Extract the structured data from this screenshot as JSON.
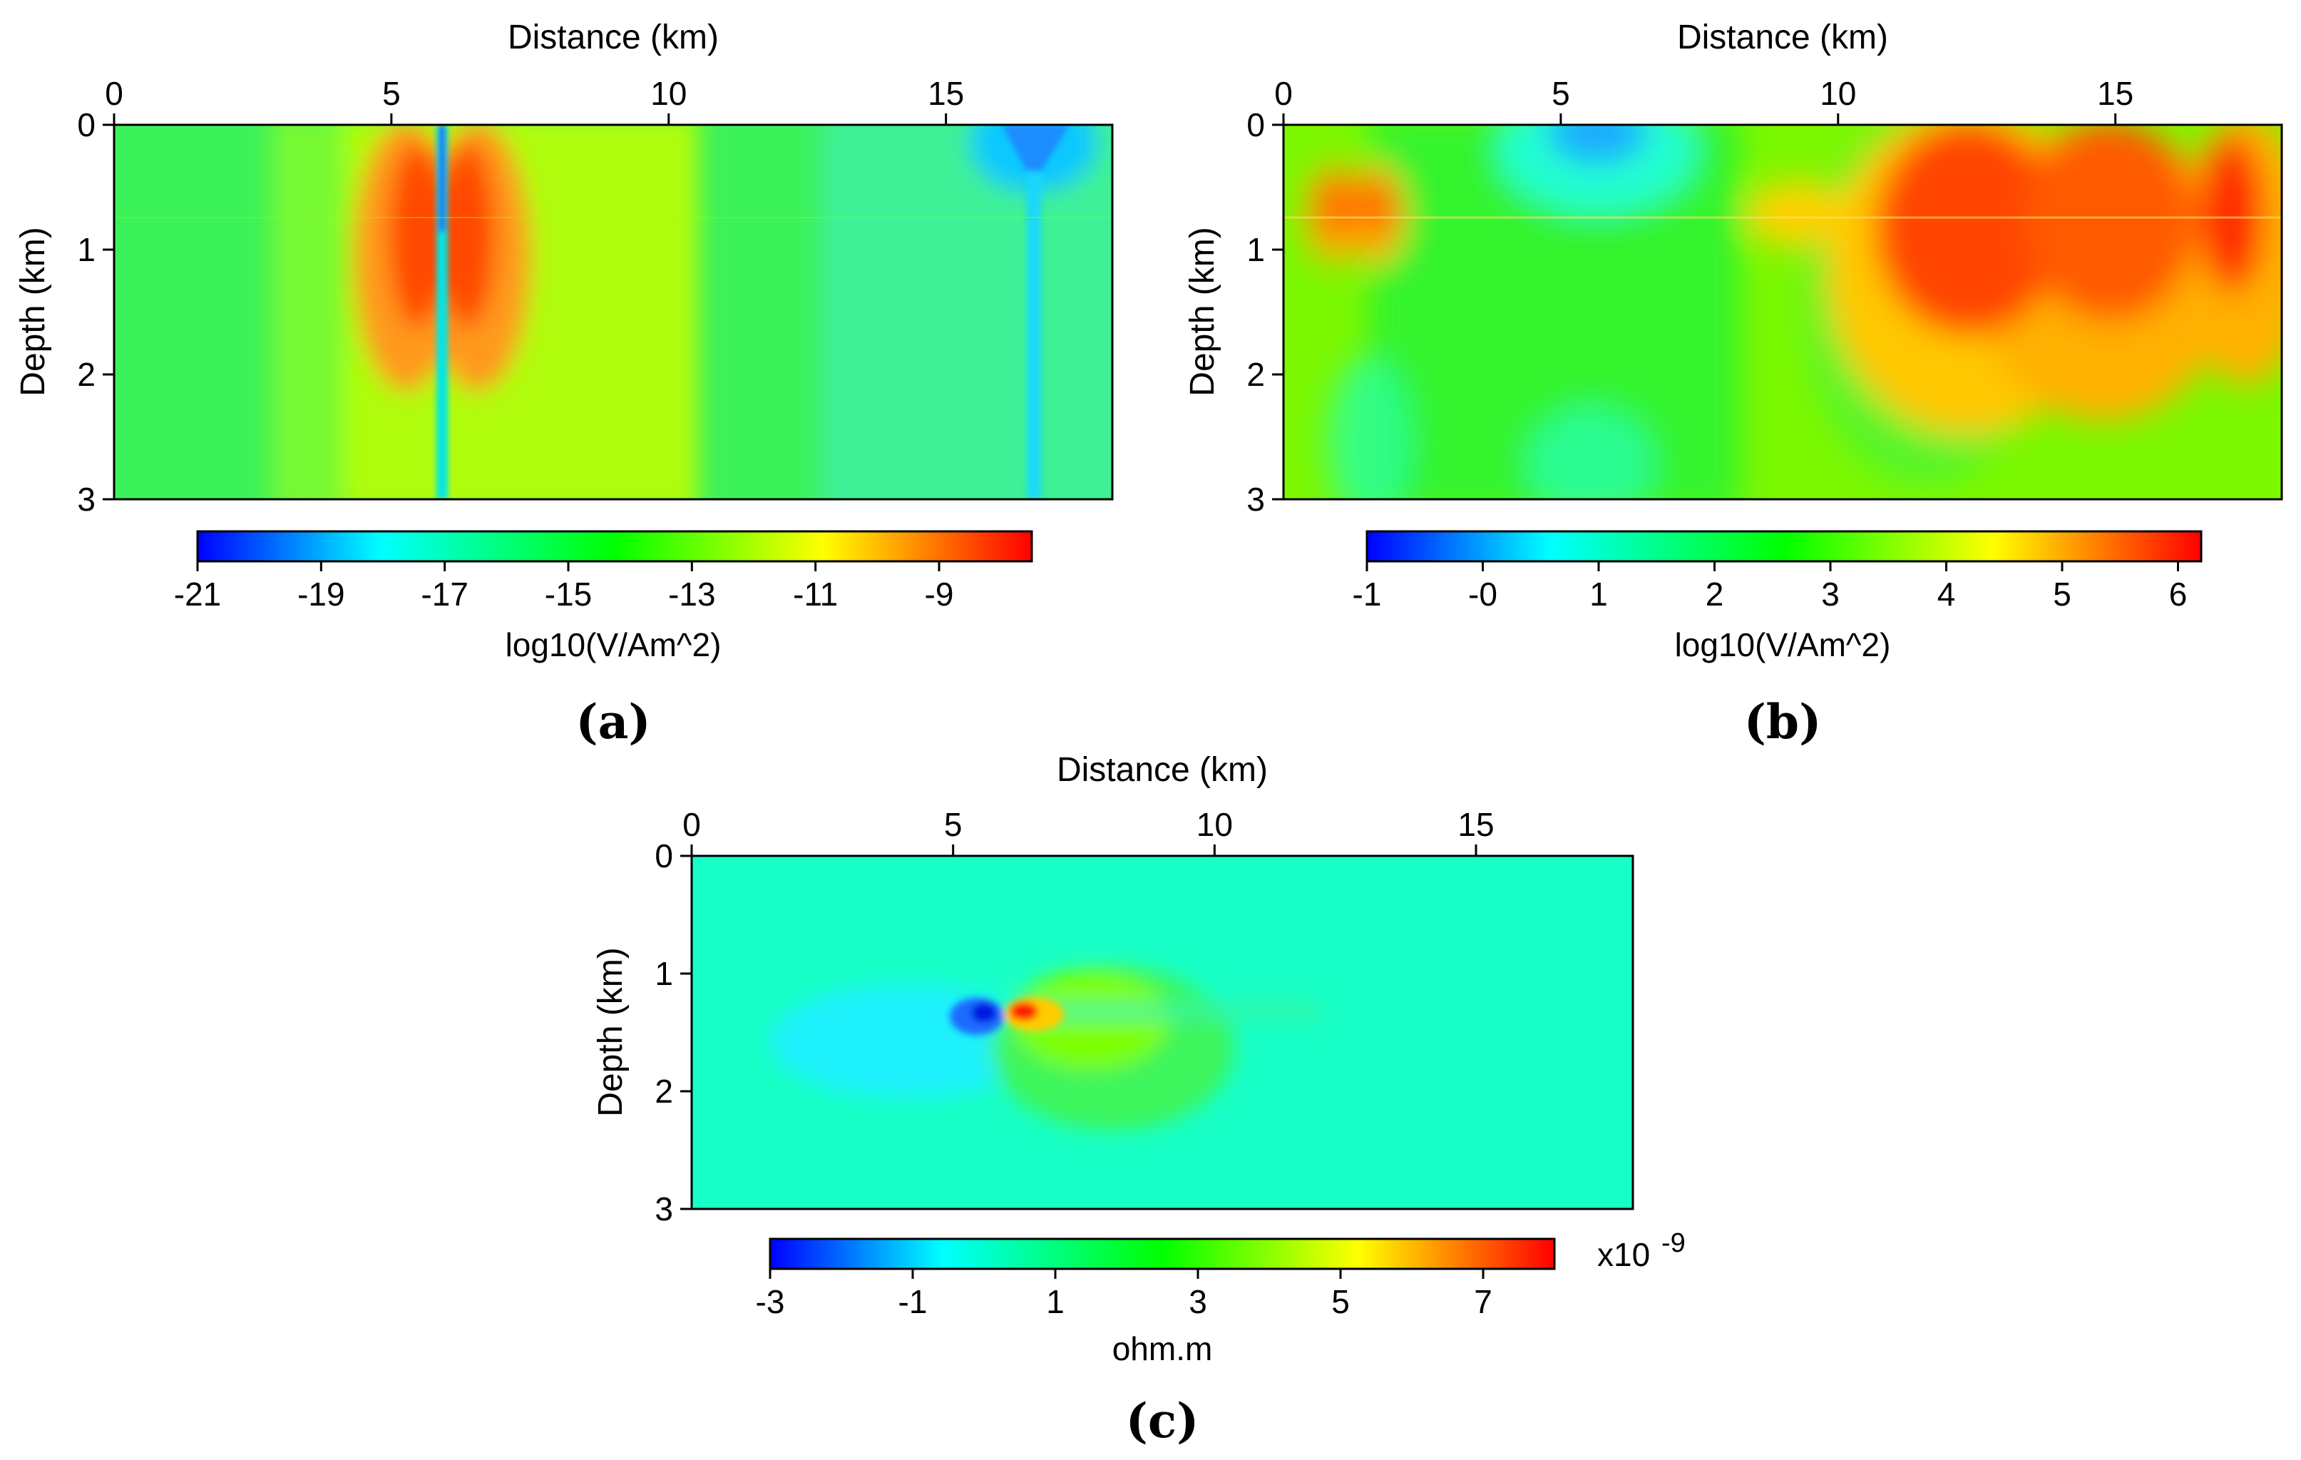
{
  "figure": {
    "panel_labels": [
      "(a)",
      "(b)",
      "(c)"
    ]
  },
  "chart_data": [
    {
      "panel": "(a)",
      "type": "heatmap",
      "xlabel": "Distance (km)",
      "ylabel": "Depth (km)",
      "x_ticks": [
        "0",
        "5",
        "10",
        "15"
      ],
      "y_ticks": [
        "0",
        "1",
        "2",
        "3"
      ],
      "xlim": [
        0,
        18
      ],
      "ylim": [
        0,
        3
      ],
      "colorbar": {
        "label": "log10(V/Am^2)",
        "range": [
          -21,
          -7.5
        ],
        "ticks": [
          "-21",
          "-19",
          "-17",
          "-15",
          "-13",
          "-11",
          "-9"
        ],
        "tick_values": [
          -21,
          -19,
          -17,
          -15,
          -13,
          -11,
          -9
        ],
        "multiplier": ""
      },
      "field_description": "Vertical conductive column near x = 6 km reaching about -8 on both sides of a narrow low (about -19); broad yellow-green band between 4.5 and 10 km; minimum near x = 16.5 km at the surface (about -17)."
    },
    {
      "panel": "(b)",
      "type": "heatmap",
      "xlabel": "Distance (km)",
      "ylabel": "Depth (km)",
      "x_ticks": [
        "0",
        "5",
        "10",
        "15"
      ],
      "y_ticks": [
        "0",
        "1",
        "2",
        "3"
      ],
      "xlim": [
        0,
        18
      ],
      "ylim": [
        0,
        3
      ],
      "colorbar": {
        "label": "log10(V/Am^2)",
        "range": [
          -1,
          6.2
        ],
        "ticks": [
          "-1",
          "-0",
          "1",
          "2",
          "3",
          "4",
          "5",
          "6"
        ],
        "tick_values": [
          -1,
          0,
          1,
          2,
          3,
          4,
          5,
          6
        ],
        "multiplier": ""
      },
      "field_description": "Strong highs (about 5.5 to 6) between 10 and 18 km centred near 0.75 km depth; small highs near x = 1 to 1.5 km; low (about 0.5) at the surface near x = 5.5 km."
    },
    {
      "panel": "(c)",
      "type": "heatmap",
      "xlabel": "Distance (km)",
      "ylabel": "Depth (km)",
      "x_ticks": [
        "0",
        "5",
        "10",
        "15"
      ],
      "y_ticks": [
        "0",
        "1",
        "2",
        "3"
      ],
      "xlim": [
        0,
        18
      ],
      "ylim": [
        0,
        3
      ],
      "colorbar": {
        "label": "ohm.m",
        "range": [
          -3,
          8
        ],
        "ticks": [
          "-3",
          "-1",
          "1",
          "3",
          "5",
          "7"
        ],
        "tick_values": [
          -3,
          -1,
          1,
          3,
          5,
          7
        ],
        "multiplier": "x10",
        "multiplier_exponent": "-9"
      },
      "field_description": "Background about 0.9; negative anomaly (about -3) just left of x = 6 km at 1.3 km depth; positive anomaly (about 8) just right of x = 6 km at 1.3 km depth with a green lobe below."
    }
  ]
}
